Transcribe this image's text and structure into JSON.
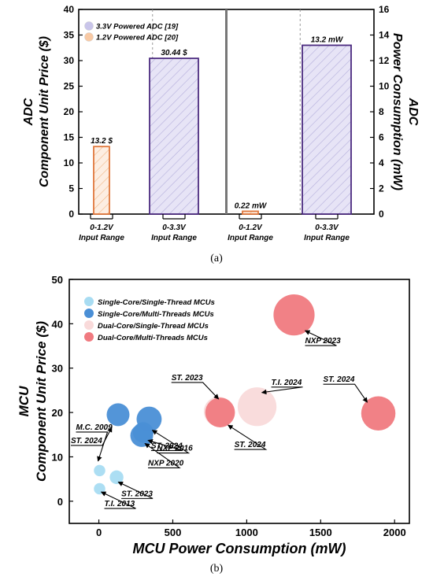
{
  "chart_data": [
    {
      "type": "bar",
      "panel_label": "(a)",
      "ylabel_left": [
        "ADC",
        "Component Unit Price ($)"
      ],
      "ylabel_right": [
        "ADC",
        "Power Consumption (mW)"
      ],
      "ylim_left": [
        0,
        40
      ],
      "ylim_right": [
        0,
        16
      ],
      "yticks_left": [
        0,
        5,
        10,
        15,
        20,
        25,
        30,
        35,
        40
      ],
      "yticks_right": [
        0,
        2,
        4,
        6,
        8,
        10,
        12,
        14,
        16
      ],
      "legend": [
        {
          "name": "3.3V Powered ADC [19]",
          "color": "#c9c5ea"
        },
        {
          "name": "1.2V Powered ADC [20]",
          "color": "#f8c9a4"
        }
      ],
      "categories": [
        [
          "0-1.2V",
          "Input Range"
        ],
        [
          "0-3.3V",
          "Input Range"
        ],
        [
          "0-1.2V",
          "Input Range"
        ],
        [
          "0-3.3V",
          "Input Range"
        ]
      ],
      "bars": [
        {
          "group": "price",
          "series": "1.2V Powered ADC [20]",
          "value": 13.2,
          "label": "13.2 $"
        },
        {
          "group": "price",
          "series": "3.3V Powered ADC [19]",
          "value": 30.44,
          "label": "30.44 $"
        },
        {
          "group": "power",
          "series": "1.2V Powered ADC [20]",
          "value": 0.22,
          "label": "0.22 mW"
        },
        {
          "group": "power",
          "series": "3.3V Powered ADC [19]",
          "value": 13.2,
          "label": "13.2 mW"
        }
      ]
    },
    {
      "type": "scatter",
      "panel_label": "(b)",
      "xlabel": "MCU Power Consumption (mW)",
      "ylabel": [
        "MCU",
        "Component Unit Price ($)"
      ],
      "xlim": [
        -200,
        2100
      ],
      "ylim": [
        -5,
        50
      ],
      "xticks": [
        0,
        500,
        1000,
        1500,
        2000
      ],
      "yticks": [
        0,
        10,
        20,
        30,
        40,
        50
      ],
      "legend": [
        {
          "name": "Single-Core/Single-Thread MCUs",
          "color": "#a8dcf2"
        },
        {
          "name": "Single-Core/Multi-Threads MCUs",
          "color": "#4a8fd6"
        },
        {
          "name": "Dual-Core/Single-Thread MCUs",
          "color": "#f9dada"
        },
        {
          "name": "Dual-Core/Multi-Threads MCUs",
          "color": "#f07a80"
        }
      ],
      "points": [
        {
          "label": "M.C. 2009",
          "x": 5,
          "y": 6.9,
          "cat": 0,
          "size": 5
        },
        {
          "label": "T.I. 2013",
          "x": 5,
          "y": 2.8,
          "cat": 0,
          "size": 5
        },
        {
          "label": "ST. 2023",
          "x": 120,
          "y": 5.4,
          "cat": 0,
          "size": 6
        },
        {
          "label": "ST. 2024",
          "x": 130,
          "y": 19.5,
          "cat": 1,
          "size": 10
        },
        {
          "label": "NXP 2020",
          "x": 290,
          "y": 14.8,
          "cat": 1,
          "size": 10
        },
        {
          "label": "ST. 2024",
          "x": 300,
          "y": 15.5,
          "cat": 1,
          "size": 9
        },
        {
          "label": "NXP 2016",
          "x": 340,
          "y": 18.5,
          "cat": 1,
          "size": 11
        },
        {
          "label": "ST. 2023",
          "x": 810,
          "y": 20.2,
          "cat": 2,
          "size": 13
        },
        {
          "label": "ST. 2024",
          "x": 820,
          "y": 20.0,
          "cat": 3,
          "size": 13
        },
        {
          "label": "T.I. 2024",
          "x": 1070,
          "y": 21.3,
          "cat": 2,
          "size": 17
        },
        {
          "label": "NXP 2023",
          "x": 1320,
          "y": 42.0,
          "cat": 3,
          "size": 18
        },
        {
          "label": "ST. 2024",
          "x": 1890,
          "y": 19.8,
          "cat": 3,
          "size": 15
        }
      ]
    }
  ]
}
